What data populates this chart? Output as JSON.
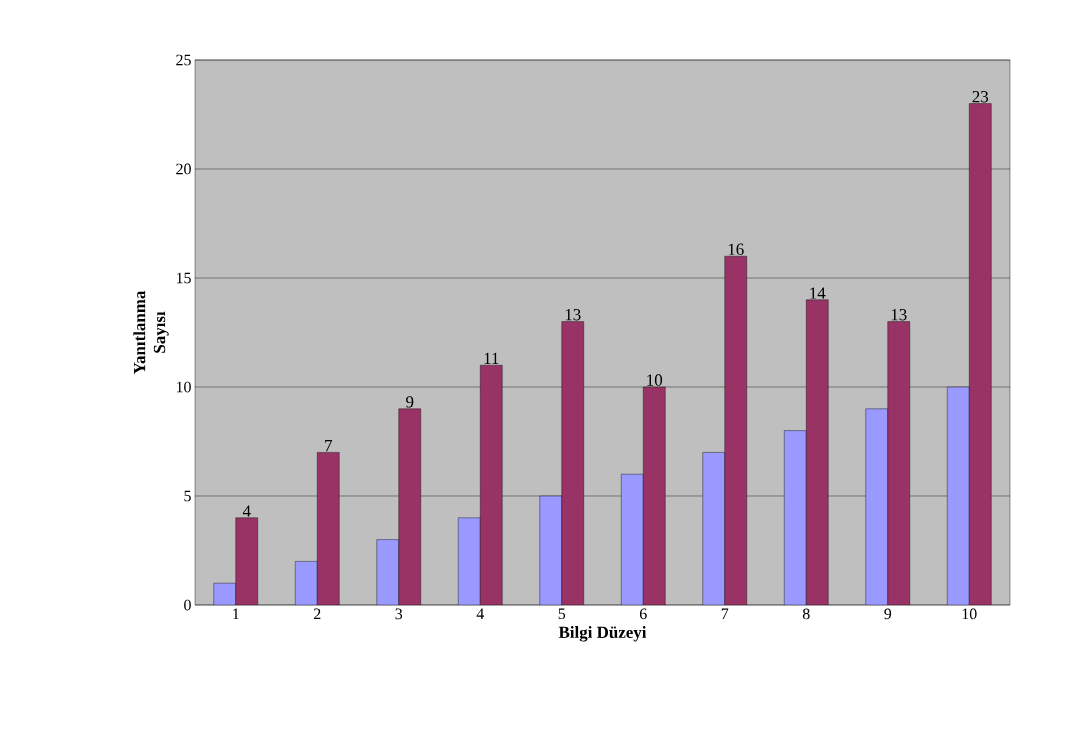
{
  "chart_data": {
    "type": "bar",
    "xlabel": "Bilgi Düzeyi",
    "ylabel": "Yanıtlanma Sayısı",
    "categories": [
      "1",
      "2",
      "3",
      "4",
      "5",
      "6",
      "7",
      "8",
      "9",
      "10"
    ],
    "series": [
      {
        "color": "#9999ff",
        "values": [
          1,
          2,
          3,
          4,
          5,
          6,
          7,
          8,
          9,
          10
        ]
      },
      {
        "color": "#993366",
        "values": [
          4,
          7,
          9,
          11,
          13,
          10,
          16,
          14,
          13,
          23
        ],
        "value_labels": [
          "4",
          "7",
          "9",
          "11",
          "13",
          "10",
          "16",
          "14",
          "13",
          "23"
        ]
      }
    ],
    "ylim": [
      0,
      25
    ],
    "yticks": [
      0,
      5,
      10,
      15,
      20,
      25
    ],
    "grid": "y"
  }
}
